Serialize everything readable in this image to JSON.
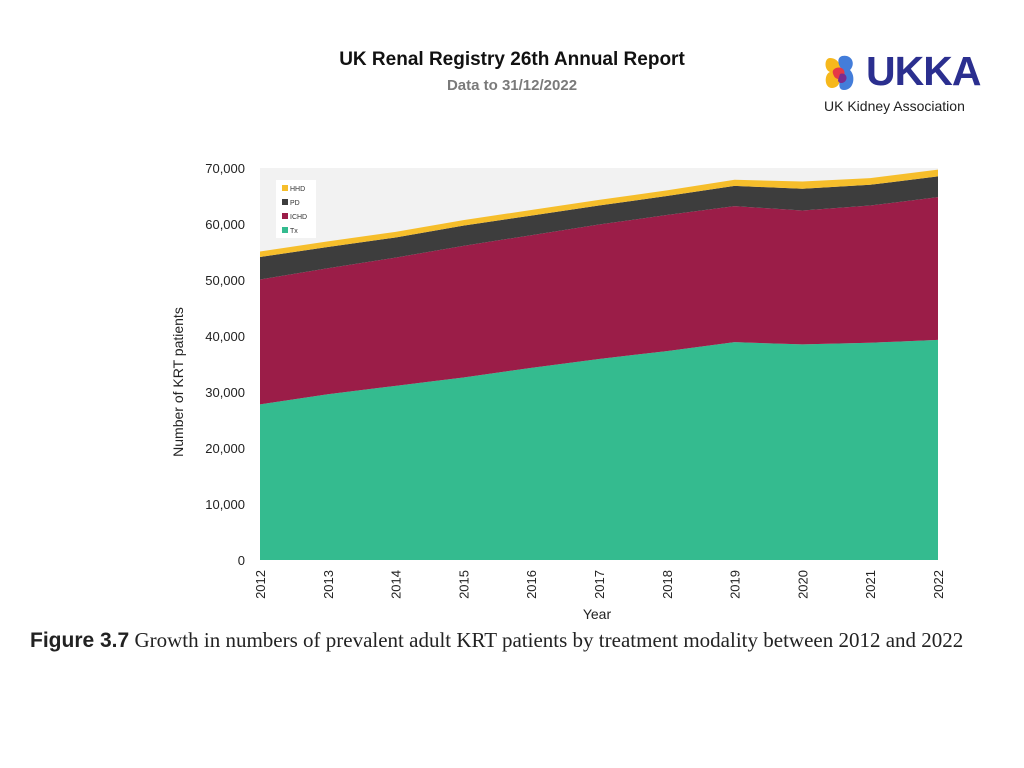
{
  "header": {
    "title": "UK Renal Registry 26th Annual Report",
    "subtitle": "Data to 31/12/2022"
  },
  "logo": {
    "wordmark": "UKKA",
    "subtitle": "UK Kidney Association",
    "colors": {
      "dark": "#2b2f8f",
      "yellow": "#f6b81c",
      "red": "#e63946",
      "blue": "#2f6fd6",
      "purple": "#7b2c8f"
    }
  },
  "caption": {
    "label": "Figure 3.7",
    "text": " Growth in numbers of prevalent adult KRT patients by treatment modality between 2012 and 2022"
  },
  "chart_data": {
    "type": "area",
    "stacked": true,
    "x": [
      2012,
      2013,
      2014,
      2015,
      2016,
      2017,
      2018,
      2019,
      2020,
      2021,
      2022
    ],
    "xlabel": "Year",
    "ylabel": "Number of KRT patients",
    "ylim": [
      0,
      70000
    ],
    "yticks": [
      0,
      10000,
      20000,
      30000,
      40000,
      50000,
      60000,
      70000
    ],
    "ytick_labels": [
      "0",
      "10,000",
      "20,000",
      "30,000",
      "40,000",
      "50,000",
      "60,000",
      "70,000"
    ],
    "legend_position": "top-left",
    "series": [
      {
        "name": "Tx",
        "color": "#34bb8f",
        "values": [
          27800,
          29600,
          31100,
          32600,
          34300,
          35900,
          37300,
          38900,
          38500,
          38800,
          39300
        ]
      },
      {
        "name": "ICHD",
        "color": "#9b1d48",
        "values": [
          22300,
          22500,
          22900,
          23500,
          23700,
          24000,
          24300,
          24300,
          23900,
          24500,
          25500
        ]
      },
      {
        "name": "PD",
        "color": "#3d3d3d",
        "values": [
          4000,
          3800,
          3600,
          3600,
          3500,
          3400,
          3400,
          3600,
          3900,
          3700,
          3700
        ]
      },
      {
        "name": "HHD",
        "color": "#f6be2b",
        "values": [
          1000,
          1000,
          1000,
          1000,
          1000,
          1000,
          1000,
          1100,
          1300,
          1200,
          1200
        ]
      }
    ]
  }
}
